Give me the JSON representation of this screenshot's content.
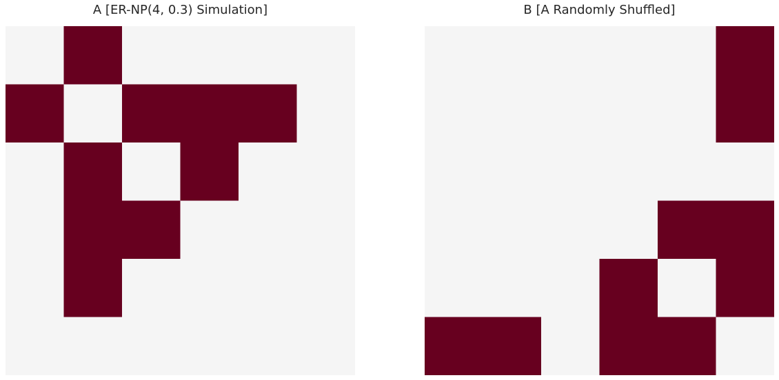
{
  "colors": {
    "zero": "#f5f5f5",
    "one": "#67001f",
    "background": "#ffffff",
    "title_text": "#262626"
  },
  "chart_data": [
    {
      "type": "heatmap",
      "title": "A [ER-NP(4, 0.3) Simulation]",
      "rows": 6,
      "cols": 6,
      "values": [
        [
          0,
          1,
          0,
          0,
          0,
          0
        ],
        [
          1,
          0,
          1,
          1,
          1,
          0
        ],
        [
          0,
          1,
          0,
          1,
          0,
          0
        ],
        [
          0,
          1,
          1,
          0,
          0,
          0
        ],
        [
          0,
          1,
          0,
          0,
          0,
          0
        ],
        [
          0,
          0,
          0,
          0,
          0,
          0
        ]
      ],
      "colorbar": false,
      "axes_visible": false
    },
    {
      "type": "heatmap",
      "title": "B [A Randomly Shuffled]",
      "rows": 6,
      "cols": 6,
      "values": [
        [
          0,
          0,
          0,
          0,
          0,
          1
        ],
        [
          0,
          0,
          0,
          0,
          0,
          1
        ],
        [
          0,
          0,
          0,
          0,
          0,
          0
        ],
        [
          0,
          0,
          0,
          0,
          1,
          1
        ],
        [
          0,
          0,
          0,
          1,
          0,
          1
        ],
        [
          1,
          1,
          0,
          1,
          1,
          0
        ]
      ],
      "colorbar": false,
      "axes_visible": false
    }
  ]
}
